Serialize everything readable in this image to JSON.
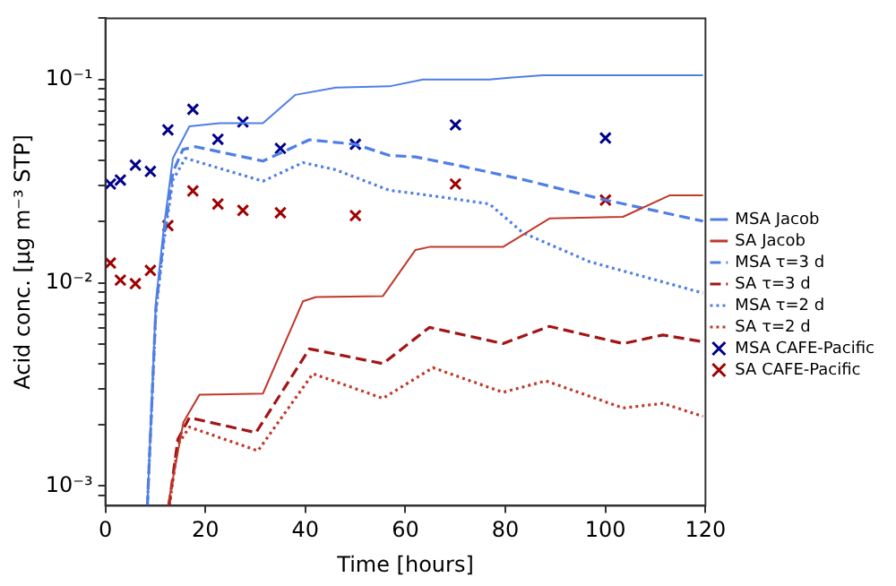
{
  "chart_data": {
    "type": "line",
    "xlabel": "Time [hours]",
    "ylabel": "Acid conc. [μg m⁻³ STP]",
    "log": "y",
    "grid": false,
    "legend": "right",
    "xlim": [
      0,
      120
    ],
    "xticks": [
      0,
      20,
      40,
      60,
      80,
      100,
      120
    ],
    "ylim": [
      0.0008,
      0.2
    ],
    "yticks": [
      {
        "value": 0.0009,
        "label": null
      },
      {
        "value": 0.001,
        "label": "10⁻³"
      },
      {
        "value": 0.002,
        "label": null
      },
      {
        "value": 0.003,
        "label": null
      },
      {
        "value": 0.004,
        "label": null
      },
      {
        "value": 0.005,
        "label": null
      },
      {
        "value": 0.006,
        "label": null
      },
      {
        "value": 0.007,
        "label": null
      },
      {
        "value": 0.008,
        "label": null
      },
      {
        "value": 0.009,
        "label": null
      },
      {
        "value": 0.01,
        "label": "10⁻²"
      },
      {
        "value": 0.02,
        "label": null
      },
      {
        "value": 0.03,
        "label": null
      },
      {
        "value": 0.04,
        "label": null
      },
      {
        "value": 0.05,
        "label": null
      },
      {
        "value": 0.06,
        "label": null
      },
      {
        "value": 0.07,
        "label": null
      },
      {
        "value": 0.08,
        "label": null
      },
      {
        "value": 0.09,
        "label": null
      },
      {
        "value": 0.1,
        "label": "10⁻¹"
      },
      {
        "value": 0.2,
        "label": null
      }
    ],
    "series": [
      {
        "name": "MSA Jacob",
        "type": "line",
        "color": "#4f7fe6",
        "line_style": "solid",
        "marker": "none",
        "x": [
          8.4,
          10.1,
          11.7,
          13.5,
          16.8,
          22.8,
          31.5,
          38,
          46.1,
          56.8,
          63.5,
          76.8,
          80.8,
          87.5,
          119.5
        ],
        "values": [
          0.0008,
          0.0081,
          0.0188,
          0.041,
          0.0588,
          0.061,
          0.061,
          0.084,
          0.0912,
          0.0925,
          0.1,
          0.1,
          0.102,
          0.105,
          0.105
        ]
      },
      {
        "name": "SA Jacob",
        "type": "line",
        "color": "#c0392b",
        "line_style": "solid",
        "marker": "none",
        "x": [
          12.5,
          15.6,
          18.8,
          31.5,
          39.5,
          42.1,
          55.5,
          62,
          64.8,
          79.5,
          88.8,
          103.5,
          112.8,
          119.5
        ],
        "values": [
          0.0008,
          0.00206,
          0.00281,
          0.00285,
          0.0081,
          0.0085,
          0.0086,
          0.0145,
          0.015,
          0.015,
          0.0207,
          0.0211,
          0.0269,
          0.0269
        ]
      },
      {
        "name": "MSA τ=3 d",
        "type": "line",
        "color": "#4f7fe6",
        "line_style": "dashed",
        "marker": "none",
        "x": [
          8.4,
          10.1,
          11.7,
          13.5,
          15.5,
          18,
          31.5,
          40.8,
          50,
          56.8,
          62,
          70,
          83.5,
          99.5,
          119.5
        ],
        "values": [
          0.0008,
          0.0075,
          0.017,
          0.035,
          0.0452,
          0.0467,
          0.0397,
          0.0505,
          0.048,
          0.0423,
          0.0416,
          0.038,
          0.0322,
          0.0257,
          0.0201
        ]
      },
      {
        "name": "SA τ=3 d",
        "type": "line",
        "color": "#a31515",
        "line_style": "dashed",
        "marker": "none",
        "x": [
          12.7,
          14.5,
          16.8,
          30.1,
          40.8,
          55.5,
          64.8,
          79.5,
          88.8,
          103.5,
          111.5,
          119.5
        ],
        "values": [
          0.0008,
          0.0017,
          0.00217,
          0.00183,
          0.00473,
          0.004,
          0.00603,
          0.00502,
          0.0061,
          0.00502,
          0.00553,
          0.00512
        ]
      },
      {
        "name": "MSA τ=2 d",
        "type": "line",
        "color": "#4f7fe6",
        "line_style": "dotted",
        "marker": "none",
        "x": [
          8.4,
          10.1,
          11.7,
          13.5,
          16,
          31.5,
          39.5,
          46,
          56.8,
          64.8,
          76.8,
          83.5,
          96.8,
          119.5
        ],
        "values": [
          0.0008,
          0.0072,
          0.016,
          0.032,
          0.041,
          0.0316,
          0.039,
          0.036,
          0.0285,
          0.0269,
          0.0244,
          0.0176,
          0.0127,
          0.0089
        ]
      },
      {
        "name": "SA τ=2 d",
        "type": "line",
        "color": "#c0392b",
        "line_style": "dotted",
        "marker": "none",
        "x": [
          12.8,
          14.5,
          16.8,
          30.5,
          41.5,
          55.5,
          65.5,
          79.5,
          88.1,
          103.5,
          111.5,
          119.5
        ],
        "values": [
          0.0008,
          0.0016,
          0.00195,
          0.00149,
          0.00357,
          0.0027,
          0.00382,
          0.00289,
          0.00329,
          0.00242,
          0.00255,
          0.0022
        ]
      },
      {
        "name": "MSA CAFE-Pacific",
        "type": "scatter",
        "color": "#00008b",
        "marker": "cross",
        "x": [
          1,
          3,
          6,
          9,
          12.5,
          17.5,
          22.5,
          27.5,
          35,
          50,
          70,
          100
        ],
        "values": [
          0.0306,
          0.032,
          0.0379,
          0.0353,
          0.0565,
          0.0713,
          0.0508,
          0.0618,
          0.0458,
          0.048,
          0.0598,
          0.0515
        ]
      },
      {
        "name": "SA CAFE-Pacific",
        "type": "scatter",
        "color": "#a00000",
        "marker": "cross",
        "x": [
          1,
          3,
          6,
          9,
          12.5,
          17.5,
          22.5,
          27.5,
          35,
          50,
          70,
          100
        ],
        "values": [
          0.0125,
          0.0103,
          0.0099,
          0.0115,
          0.0191,
          0.0283,
          0.0244,
          0.0227,
          0.0221,
          0.0214,
          0.0306,
          0.0255
        ]
      }
    ]
  }
}
